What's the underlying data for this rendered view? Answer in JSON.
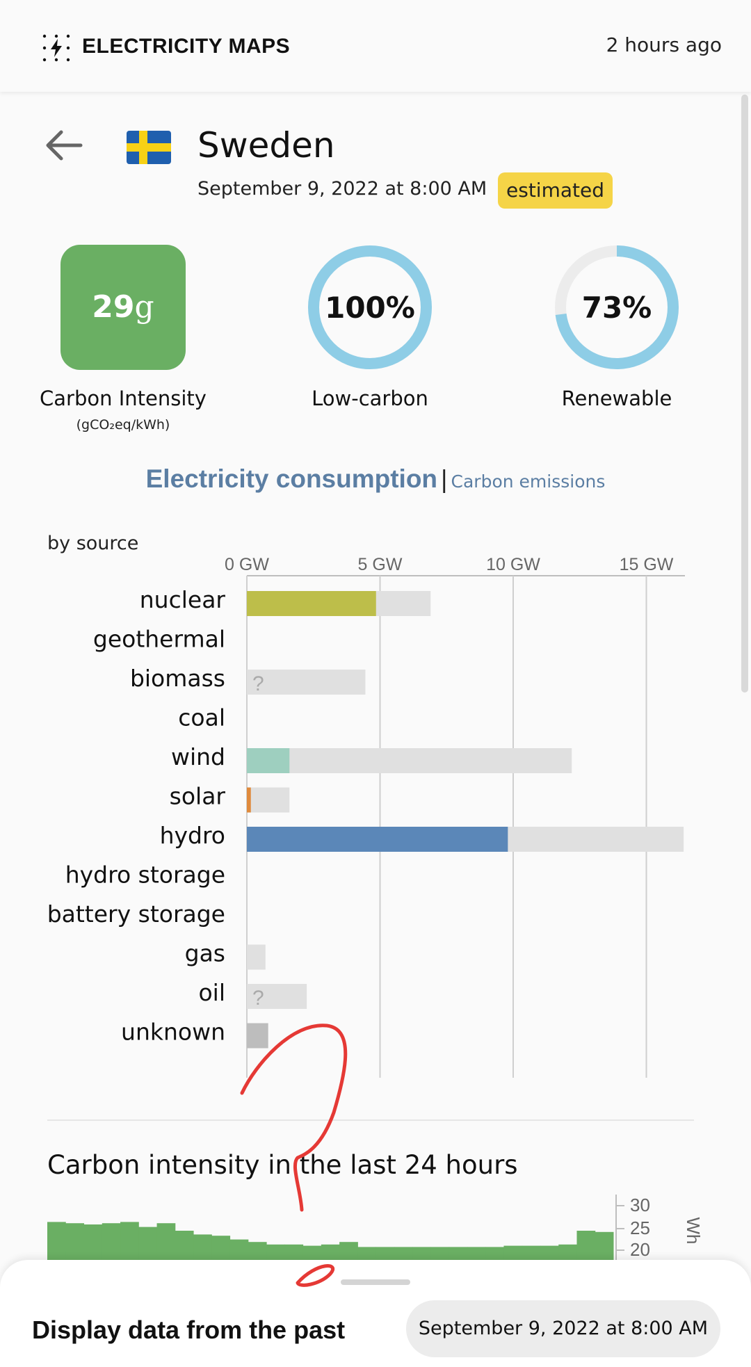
{
  "header": {
    "app_title": "ELECTRICITY MAPS",
    "logo_icon": "lightning-logo-icon",
    "updated": "2 hours ago"
  },
  "zone": {
    "name": "Sweden",
    "flag_icon": "sweden-flag-icon",
    "datetime": "September 9, 2022 at 8:00 AM",
    "badge": "estimated",
    "badge_color": "#f5d447"
  },
  "metrics": {
    "carbon_intensity": {
      "value": "29",
      "unit": "g",
      "label": "Carbon Intensity",
      "sublabel": "(gCO₂eq/kWh)",
      "color": "#6aaf63"
    },
    "low_carbon": {
      "value": "100%",
      "fraction": 1.0,
      "label": "Low-carbon"
    },
    "renewable": {
      "value": "73%",
      "fraction": 0.73,
      "label": "Renewable"
    },
    "ring_color": "#8ecde6",
    "ring_track_color": "#ececec"
  },
  "toggle": {
    "active": "Electricity consumption",
    "separator": "|",
    "inactive": "Carbon emissions"
  },
  "by_source_label": "by source",
  "chart_data": [
    {
      "type": "bar",
      "orientation": "horizontal",
      "x_ticks": [
        "0 GW",
        "5 GW",
        "10 GW",
        "15 GW"
      ],
      "xlim": [
        0,
        16.4
      ],
      "categories": [
        "nuclear",
        "geothermal",
        "biomass",
        "coal",
        "wind",
        "solar",
        "hydro",
        "hydro storage",
        "battery storage",
        "gas",
        "oil",
        "unknown"
      ],
      "series": [
        {
          "values": [
            4.85,
            0,
            0,
            0,
            1.6,
            0.15,
            9.8,
            0,
            0,
            0,
            0,
            0.8
          ],
          "colors": [
            "#bdbe4a",
            null,
            null,
            null,
            "#9ecfbf",
            "#e08a3c",
            "#5b87b8",
            null,
            null,
            null,
            null,
            "#bdbdbd"
          ]
        },
        {
          "values": [
            6.9,
            0,
            4.45,
            0,
            12.2,
            1.6,
            16.4,
            0,
            0,
            0.7,
            2.25,
            0.8
          ],
          "color": "#e0e0e0"
        }
      ],
      "unknown_markers": [
        "biomass",
        "oil"
      ],
      "unknown_marker_text": "?",
      "grid": true
    },
    {
      "type": "bar",
      "title": "Carbon intensity in the last 24 hours",
      "y_ticks": [
        "30",
        "25",
        "20"
      ],
      "ylabel": "Wh",
      "values": [
        33.5,
        33,
        32.5,
        33,
        33.5,
        31.5,
        33,
        30,
        28.5,
        28,
        26.5,
        25.5,
        24.5,
        24.5,
        24,
        24.5,
        25.5,
        23.5,
        23.5,
        23.5,
        23.5,
        23.5,
        23.5,
        23.5,
        23.5,
        24,
        24,
        24,
        24.5,
        30,
        29.5
      ],
      "color": "#6aaf63"
    }
  ],
  "bottom_sheet": {
    "label": "Display data from the past",
    "date": "September 9, 2022 at 8:00 AM"
  }
}
